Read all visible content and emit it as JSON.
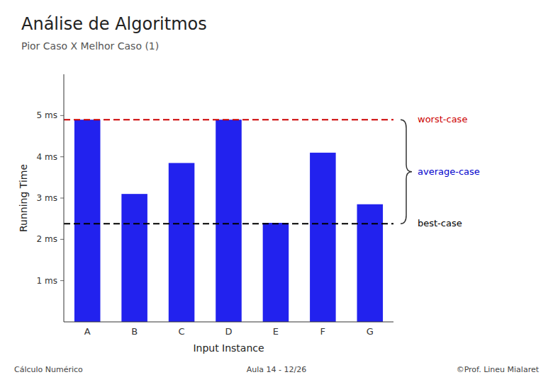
{
  "chart_data": {
    "type": "bar",
    "title": "Análise de Algoritmos",
    "subtitle": "Pior Caso X Melhor Caso (1)",
    "categories": [
      "A",
      "B",
      "C",
      "D",
      "E",
      "F",
      "G"
    ],
    "values": [
      4.9,
      3.1,
      3.85,
      4.9,
      2.4,
      4.1,
      2.85
    ],
    "color": "#2222EE",
    "xlabel": "Input Instance",
    "ylabel": "Running Time",
    "ylim": [
      0,
      6.0
    ],
    "yticks": [
      {
        "value": 1,
        "label": "1 ms"
      },
      {
        "value": 2,
        "label": "2 ms"
      },
      {
        "value": 3,
        "label": "3 ms"
      },
      {
        "value": 4,
        "label": "4 ms"
      },
      {
        "value": 5,
        "label": "5 ms"
      }
    ],
    "grid": false,
    "reference_lines": [
      {
        "value": 4.9,
        "label": "worst-case",
        "color": "#CC0000"
      },
      {
        "value": 2.38,
        "label": "best-case",
        "color": "#000000"
      }
    ],
    "annotations": [
      {
        "text": "average-case",
        "color": "#0000CC"
      }
    ],
    "footer": [
      "Cálculo Numérico",
      "Aula 14 - 12/26",
      "©Prof. Lineu Mialaret"
    ]
  }
}
